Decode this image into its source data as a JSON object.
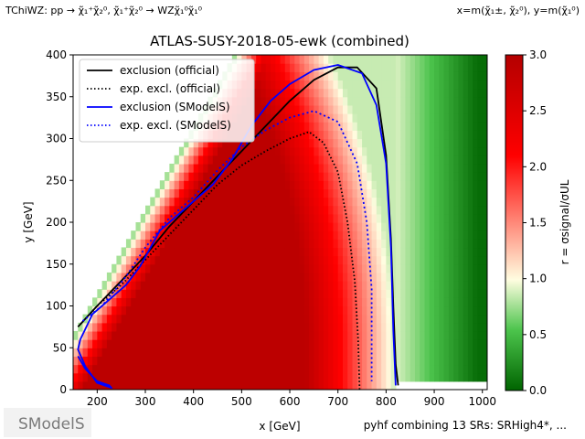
{
  "header": {
    "topology": "TChiWZ: pp → χ̃₁⁺χ̃₂⁰, χ̃₁⁺χ̃₂⁰ → WZχ̃₁⁰χ̃₁⁰",
    "axes_def": "x=m(χ̃₁±, χ̃₂⁰), y=m(χ̃₁⁰)"
  },
  "footer": {
    "logo_text": "SModelS",
    "note": "pyhf combining 13 SRs: SRHigh4*, ..."
  },
  "chart_data": {
    "type": "heatmap",
    "title": "ATLAS-SUSY-2018-05-ewk (combined)",
    "xlabel": "x [GeV]",
    "ylabel": "y [GeV]",
    "xlim": [
      150,
      1010
    ],
    "ylim": [
      0,
      400
    ],
    "xticks": [
      200,
      300,
      400,
      500,
      600,
      700,
      800,
      900,
      1000
    ],
    "yticks": [
      0,
      50,
      100,
      150,
      200,
      250,
      300,
      350,
      400
    ],
    "colorbar": {
      "label": "r = σsignal/σUL",
      "range": [
        0.0,
        3.0
      ],
      "ticks": [
        "0.0",
        "0.5",
        "1.0",
        "1.5",
        "2.0",
        "2.5",
        "3.0"
      ],
      "colors": [
        "#006400",
        "#90ee90",
        "#fffde0",
        "#ff0000",
        "#b40000"
      ]
    },
    "grid": false,
    "legend_position": "top-left",
    "legend": [
      {
        "label": "exclusion (official)",
        "color": "#000000",
        "style": "solid"
      },
      {
        "label": "exp. excl. (official)",
        "color": "#000000",
        "style": "dotted"
      },
      {
        "label": "exclusion (SModelS)",
        "color": "#0000ff",
        "style": "solid"
      },
      {
        "label": "exp. excl. (SModelS)",
        "color": "#0000ff",
        "style": "dotted"
      }
    ],
    "curves": {
      "exclusion_official": [
        [
          160,
          75
        ],
        [
          200,
          100
        ],
        [
          250,
          130
        ],
        [
          300,
          160
        ],
        [
          350,
          195
        ],
        [
          400,
          225
        ],
        [
          450,
          255
        ],
        [
          500,
          285
        ],
        [
          550,
          315
        ],
        [
          600,
          345
        ],
        [
          650,
          370
        ],
        [
          700,
          385
        ],
        [
          740,
          385
        ],
        [
          780,
          360
        ],
        [
          800,
          280
        ],
        [
          810,
          180
        ],
        [
          815,
          100
        ],
        [
          820,
          30
        ],
        [
          825,
          5
        ]
      ],
      "expected_official": [
        [
          165,
          78
        ],
        [
          200,
          100
        ],
        [
          250,
          125
        ],
        [
          300,
          155
        ],
        [
          350,
          185
        ],
        [
          400,
          215
        ],
        [
          450,
          245
        ],
        [
          500,
          268
        ],
        [
          550,
          285
        ],
        [
          600,
          300
        ],
        [
          640,
          308
        ],
        [
          670,
          295
        ],
        [
          700,
          260
        ],
        [
          720,
          200
        ],
        [
          735,
          130
        ],
        [
          742,
          60
        ],
        [
          745,
          0
        ]
      ],
      "exclusion_smodels": [
        [
          160,
          40
        ],
        [
          175,
          25
        ],
        [
          200,
          10
        ],
        [
          225,
          5
        ],
        [
          230,
          2
        ],
        [
          200,
          8
        ],
        [
          175,
          28
        ],
        [
          160,
          48
        ],
        [
          165,
          60
        ],
        [
          190,
          90
        ],
        [
          220,
          105
        ],
        [
          260,
          125
        ],
        [
          290,
          148
        ],
        [
          330,
          190
        ],
        [
          370,
          210
        ],
        [
          400,
          225
        ],
        [
          440,
          245
        ],
        [
          480,
          275
        ],
        [
          520,
          315
        ],
        [
          560,
          345
        ],
        [
          600,
          365
        ],
        [
          650,
          382
        ],
        [
          700,
          388
        ],
        [
          750,
          378
        ],
        [
          780,
          340
        ],
        [
          800,
          270
        ],
        [
          810,
          170
        ],
        [
          815,
          70
        ],
        [
          820,
          5
        ]
      ],
      "expected_smodels": [
        [
          170,
          82
        ],
        [
          210,
          100
        ],
        [
          260,
          135
        ],
        [
          300,
          170
        ],
        [
          350,
          205
        ],
        [
          400,
          230
        ],
        [
          450,
          262
        ],
        [
          500,
          290
        ],
        [
          550,
          310
        ],
        [
          600,
          325
        ],
        [
          650,
          333
        ],
        [
          700,
          320
        ],
        [
          740,
          270
        ],
        [
          760,
          200
        ],
        [
          770,
          120
        ],
        [
          770,
          50
        ],
        [
          770,
          10
        ]
      ]
    }
  }
}
